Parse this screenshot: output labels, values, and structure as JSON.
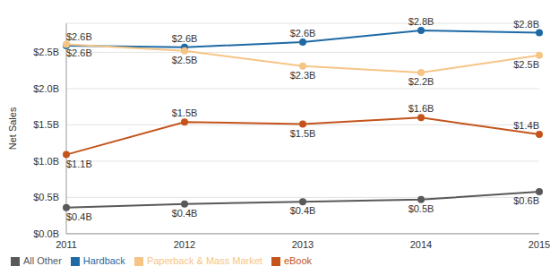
{
  "chart_data": {
    "type": "line",
    "y_label": "Net Sales",
    "categories": [
      "2011",
      "2012",
      "2013",
      "2014",
      "2015"
    ],
    "series": [
      {
        "name": "Hardback",
        "color": "#1f6aa5",
        "values": [
          2.59,
          2.57,
          2.64,
          2.8,
          2.77
        ],
        "value_labels": [
          "$2.6B",
          "$2.6B",
          "$2.6B",
          "$2.8B",
          "$2.8B"
        ]
      },
      {
        "name": "Paperback & Mass Market",
        "color": "#f6c586",
        "values": [
          2.61,
          2.52,
          2.31,
          2.22,
          2.46
        ],
        "value_labels": [
          "$2.6B",
          "$2.5B",
          "$2.3B",
          "$2.2B",
          "$2.5B"
        ]
      },
      {
        "name": "eBook",
        "color": "#c4541c",
        "values": [
          1.09,
          1.54,
          1.51,
          1.6,
          1.37
        ],
        "value_labels": [
          "$1.1B",
          "$1.5B",
          "$1.5B",
          "$1.6B",
          "$1.4B"
        ]
      },
      {
        "name": "All Other",
        "color": "#595959",
        "values": [
          0.36,
          0.41,
          0.44,
          0.47,
          0.58
        ],
        "value_labels": [
          "$0.4B",
          "$0.4B",
          "$0.4B",
          "$0.5B",
          "$0.6B"
        ]
      }
    ],
    "ylim": [
      0,
      2.9
    ],
    "yticks": [
      {
        "value": 0,
        "label": "$0.0B"
      },
      {
        "value": 0.5,
        "label": "$0.5B"
      },
      {
        "value": 1,
        "label": "$1.0B"
      },
      {
        "value": 1.5,
        "label": "$1.5B"
      },
      {
        "value": 2,
        "label": "$2.0B"
      },
      {
        "value": 2.5,
        "label": "$2.5B"
      }
    ],
    "grid": true,
    "legend": "bottom-left",
    "marker": "circle",
    "data_labels": true
  }
}
